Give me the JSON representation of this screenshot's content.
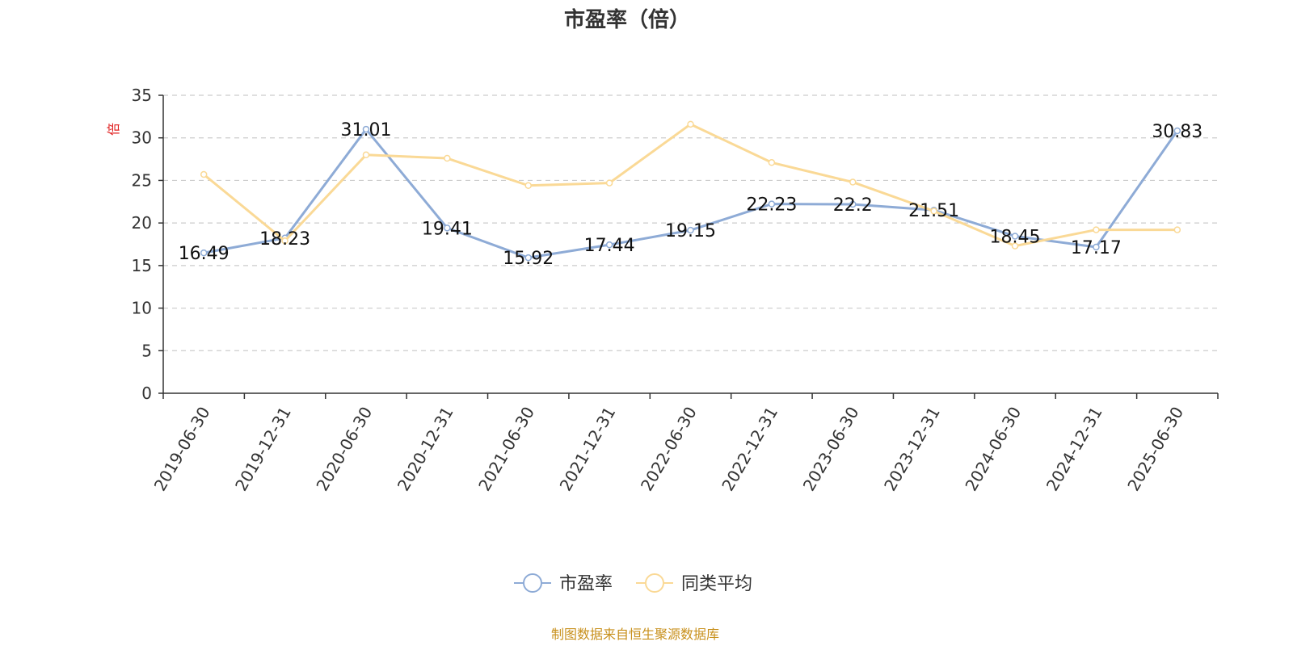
{
  "chart_data": {
    "type": "line",
    "title": "市盈率（倍）",
    "ylabel": "倍",
    "ylim": [
      0,
      35
    ],
    "yticks": [
      0,
      5,
      10,
      15,
      20,
      25,
      30,
      35
    ],
    "grid": true,
    "legend_position": "bottom",
    "categories": [
      "2019-06-30",
      "2019-12-31",
      "2020-06-30",
      "2020-12-31",
      "2021-06-30",
      "2021-12-31",
      "2022-06-30",
      "2022-12-31",
      "2023-06-30",
      "2023-12-31",
      "2024-06-30",
      "2024-12-31",
      "2025-06-30"
    ],
    "series": [
      {
        "name": "市盈率",
        "color": "#8eabd6",
        "values": [
          16.49,
          18.23,
          31.01,
          19.41,
          15.92,
          17.44,
          19.15,
          22.23,
          22.2,
          21.51,
          18.45,
          17.17,
          30.83
        ],
        "labels": [
          "16.49",
          "18.23",
          "31.01",
          "19.41",
          "15.92",
          "17.44",
          "19.15",
          "22.23",
          "22.2",
          "21.51",
          "18.45",
          "17.17",
          "30.83"
        ]
      },
      {
        "name": "同类平均",
        "color": "#fad996",
        "values": [
          25.7,
          17.9,
          28.0,
          27.6,
          24.4,
          24.7,
          31.6,
          27.1,
          24.8,
          21.4,
          17.3,
          19.2,
          19.2
        ]
      }
    ]
  },
  "footer": "制图数据来自恒生聚源数据库"
}
